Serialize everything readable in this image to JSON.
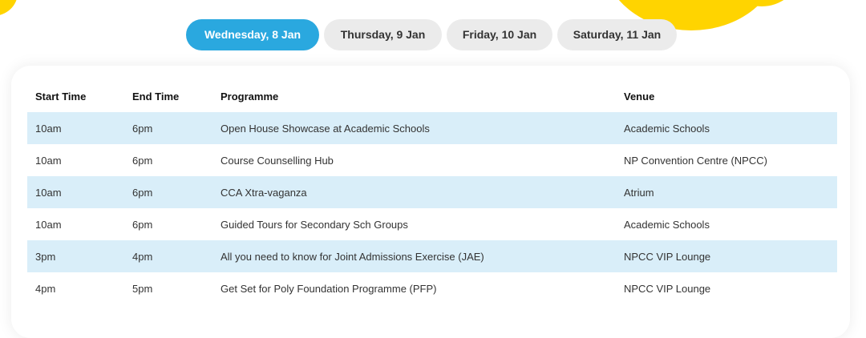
{
  "tabs": [
    {
      "label": "Wednesday, 8 Jan",
      "active": true
    },
    {
      "label": "Thursday, 9 Jan",
      "active": false
    },
    {
      "label": "Friday, 10 Jan",
      "active": false
    },
    {
      "label": "Saturday, 11 Jan",
      "active": false
    }
  ],
  "colors": {
    "accent": "#2aa8df",
    "row_stripe": "#d9eef9",
    "blob": "#ffd400",
    "tab_inactive": "#ebebeb"
  },
  "table": {
    "headers": [
      "Start Time",
      "End Time",
      "Programme",
      "Venue"
    ],
    "rows": [
      [
        "10am",
        "6pm",
        "Open House Showcase at Academic Schools",
        "Academic Schools"
      ],
      [
        "10am",
        "6pm",
        "Course Counselling Hub",
        "NP Convention Centre (NPCC)"
      ],
      [
        "10am",
        "6pm",
        "CCA Xtra-vaganza",
        "Atrium"
      ],
      [
        "10am",
        "6pm",
        "Guided Tours for Secondary Sch Groups",
        "Academic Schools"
      ],
      [
        "3pm",
        "4pm",
        "All you need to know for Joint Admissions Exercise (JAE)",
        "NPCC VIP Lounge"
      ],
      [
        "4pm",
        "5pm",
        "Get Set for Poly Foundation Programme (PFP)",
        "NPCC VIP Lounge"
      ]
    ]
  }
}
